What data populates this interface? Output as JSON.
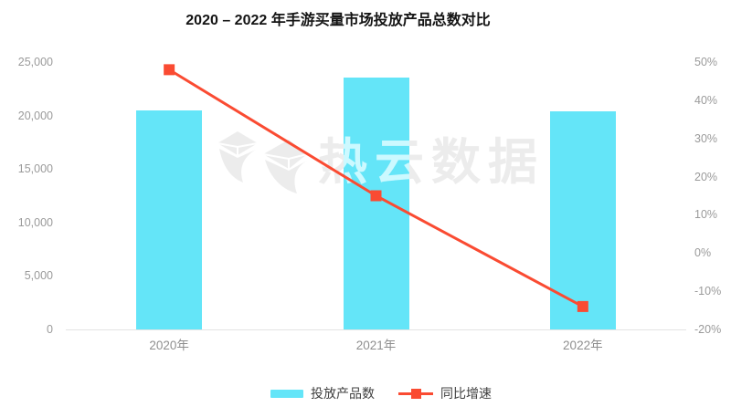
{
  "title": "2020 – 2022 年手游买量市场投放产品总数对比",
  "watermark": {
    "text": "热云数据"
  },
  "legend": {
    "items": [
      {
        "label": "投放产品数",
        "type": "bar"
      },
      {
        "label": "同比增速",
        "type": "line"
      }
    ]
  },
  "colors": {
    "bar": "#64E5F8",
    "line": "#FA4B32",
    "axis_text": "#9A9A9A",
    "x_axis_text": "#8F8F8F",
    "legend_text": "#404040",
    "title_text": "#141414",
    "axis_line": "#E3E3E3",
    "watermark": "#ECECEC"
  },
  "chart_data": {
    "type": "bar",
    "subtype": "bar-line-combo",
    "title": "2020 – 2022 年手游买量市场投放产品总数对比",
    "categories": [
      "2020年",
      "2021年",
      "2022年"
    ],
    "series": [
      {
        "name": "投放产品数",
        "type": "bar",
        "axis": "left",
        "values": [
          20500,
          23550,
          20350
        ]
      },
      {
        "name": "同比增速",
        "type": "line",
        "axis": "right",
        "unit": "%",
        "values": [
          48,
          15,
          -14
        ]
      }
    ],
    "left_axis": {
      "min": 0,
      "max": 25000,
      "step": 5000,
      "ticks": [
        {
          "value": 0,
          "label": "0"
        },
        {
          "value": 5000,
          "label": "5,000"
        },
        {
          "value": 10000,
          "label": "10,000"
        },
        {
          "value": 15000,
          "label": "15,000"
        },
        {
          "value": 20000,
          "label": "20,000"
        },
        {
          "value": 25000,
          "label": "25,000"
        }
      ]
    },
    "right_axis": {
      "min": -20,
      "max": 50,
      "step": 10,
      "ticks": [
        {
          "value": -20,
          "label": "-20%"
        },
        {
          "value": -10,
          "label": "-10%"
        },
        {
          "value": 0,
          "label": "0%"
        },
        {
          "value": 10,
          "label": "10%"
        },
        {
          "value": 20,
          "label": "20%"
        },
        {
          "value": 30,
          "label": "30%"
        },
        {
          "value": 40,
          "label": "40%"
        },
        {
          "value": 50,
          "label": "50%"
        }
      ]
    },
    "grid": false,
    "legend_position": "bottom"
  }
}
